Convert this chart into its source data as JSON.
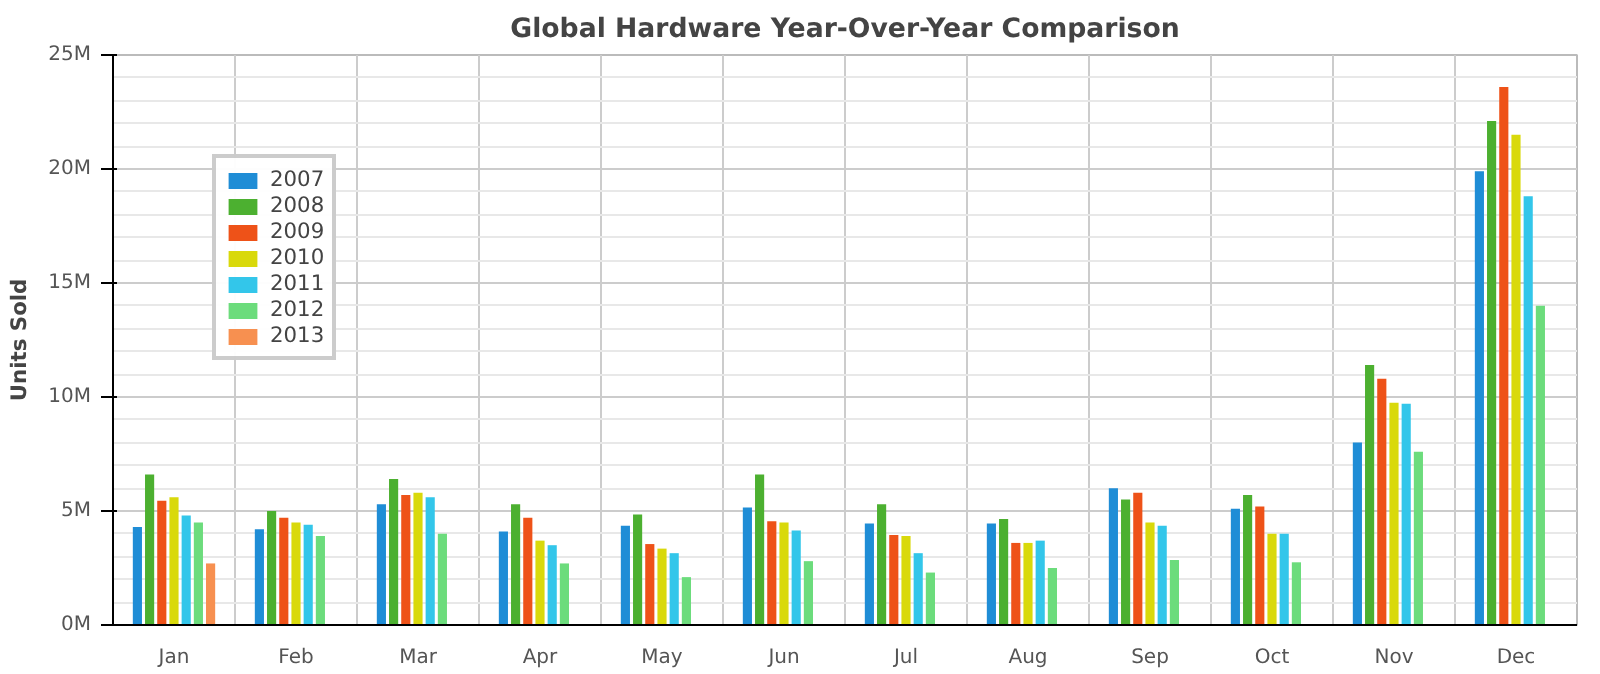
{
  "chart_data": {
    "type": "bar",
    "title": "Global Hardware Year-Over-Year Comparison",
    "ylabel": "Units Sold",
    "categories": [
      "Jan",
      "Feb",
      "Mar",
      "Apr",
      "May",
      "Jun",
      "Jul",
      "Aug",
      "Sep",
      "Oct",
      "Nov",
      "Dec"
    ],
    "ylim": [
      0,
      25000000
    ],
    "yticks": [
      {
        "value": 0,
        "label": "0M"
      },
      {
        "value": 5000000,
        "label": "5M"
      },
      {
        "value": 10000000,
        "label": "10M"
      },
      {
        "value": 15000000,
        "label": "15M"
      },
      {
        "value": 20000000,
        "label": "20M"
      },
      {
        "value": 25000000,
        "label": "25M"
      }
    ],
    "grid": true,
    "legend": "top left",
    "series": [
      {
        "name": "2007",
        "color": "#1f8dd6",
        "values": [
          4300000,
          4200000,
          5300000,
          4100000,
          4350000,
          5150000,
          4450000,
          4450000,
          6000000,
          5100000,
          8000000,
          19900000
        ]
      },
      {
        "name": "2008",
        "color": "#4cb030",
        "values": [
          6600000,
          5000000,
          6400000,
          5300000,
          4850000,
          6600000,
          5300000,
          4650000,
          5500000,
          5700000,
          11400000,
          22100000
        ]
      },
      {
        "name": "2009",
        "color": "#ee5218",
        "values": [
          5450000,
          4700000,
          5700000,
          4700000,
          3550000,
          4550000,
          3950000,
          3600000,
          5800000,
          5200000,
          10800000,
          23600000
        ]
      },
      {
        "name": "2010",
        "color": "#d9d90b",
        "values": [
          5600000,
          4500000,
          5800000,
          3700000,
          3350000,
          4500000,
          3900000,
          3600000,
          4500000,
          4000000,
          9750000,
          21500000
        ]
      },
      {
        "name": "2011",
        "color": "#33c6ea",
        "values": [
          4800000,
          4400000,
          5600000,
          3500000,
          3150000,
          4150000,
          3150000,
          3700000,
          4350000,
          4000000,
          9700000,
          18800000
        ]
      },
      {
        "name": "2012",
        "color": "#6cdc7c",
        "values": [
          4500000,
          3900000,
          4000000,
          2700000,
          2100000,
          2800000,
          2300000,
          2500000,
          2850000,
          2750000,
          7600000,
          14000000
        ]
      },
      {
        "name": "2013",
        "color": "#f79050",
        "values": [
          2700000,
          null,
          null,
          null,
          null,
          null,
          null,
          null,
          null,
          null,
          null,
          null
        ]
      }
    ]
  }
}
